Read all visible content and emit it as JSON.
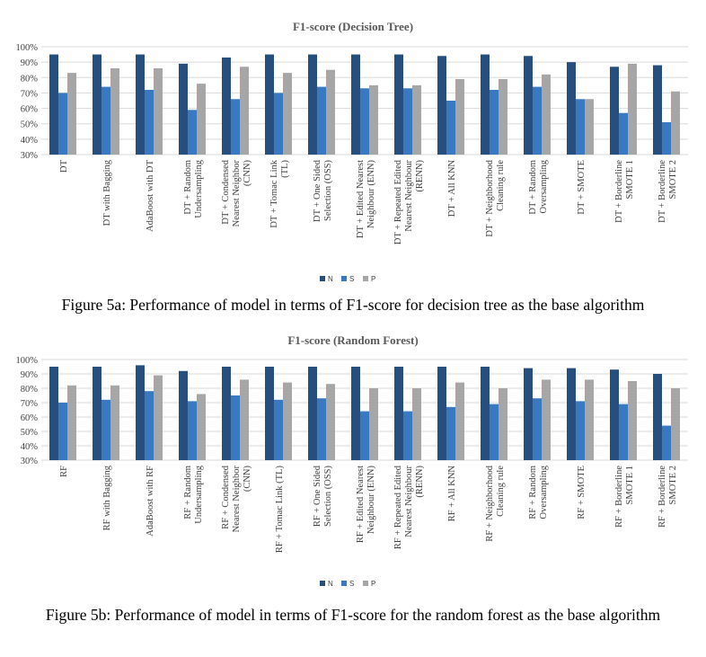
{
  "figures": [
    {
      "caption": "Figure 5a: Performance of model in terms of F1-score for decision tree as the base algorithm"
    },
    {
      "caption": "Figure 5b: Performance of model in terms of F1-score for the random forest as the base algorithm"
    }
  ],
  "colors": {
    "N": "#264f7d",
    "S": "#3a78c2",
    "P": "#a6a6a6",
    "grid": "#d9d9d9"
  },
  "chart_data": [
    {
      "type": "bar",
      "title": "F1-score (Decision Tree)",
      "xlabel": "",
      "ylabel": "",
      "ylim": [
        30,
        100
      ],
      "yticks": [
        "30%",
        "40%",
        "50%",
        "60%",
        "70%",
        "80%",
        "90%",
        "100%"
      ],
      "grid": true,
      "legend_position": "bottom",
      "categories": [
        [
          "DT"
        ],
        [
          "DT with Bagging"
        ],
        [
          "AdaBoost with DT"
        ],
        [
          "DT + Random",
          "Undersampling"
        ],
        [
          "DT + Condensed",
          "Nearest Neighbor",
          "(CNN)"
        ],
        [
          "DT + Tomac Link",
          "(TL)"
        ],
        [
          "DT + One Sided",
          "Selection (OSS)"
        ],
        [
          "DT + Edited Nearest",
          "Neighbour (ENN)"
        ],
        [
          "DT + Repeated Edited",
          "Nearest Neighbour",
          "(RENN)"
        ],
        [
          "DT + All KNN"
        ],
        [
          "DT + Neighborhood",
          "Cleaning rule"
        ],
        [
          "DT + Random",
          "Oversampling"
        ],
        [
          "DT + SMOTE"
        ],
        [
          "DT + Borderline",
          "SMOTE 1"
        ],
        [
          "DT + Borderline",
          "SMOTE 2"
        ]
      ],
      "series": [
        {
          "name": "N",
          "values": [
            95,
            95,
            95,
            89,
            93,
            95,
            95,
            95,
            95,
            94,
            95,
            94,
            90,
            87,
            88
          ]
        },
        {
          "name": "S",
          "values": [
            70,
            74,
            72,
            59,
            66,
            70,
            74,
            73,
            73,
            65,
            72,
            74,
            66,
            57,
            51
          ]
        },
        {
          "name": "P",
          "values": [
            83,
            86,
            86,
            76,
            87,
            83,
            85,
            75,
            75,
            79,
            79,
            82,
            66,
            89,
            71
          ]
        }
      ]
    },
    {
      "type": "bar",
      "title": "F1-score (Random Forest)",
      "xlabel": "",
      "ylabel": "",
      "ylim": [
        30,
        100
      ],
      "yticks": [
        "30%",
        "40%",
        "50%",
        "60%",
        "70%",
        "80%",
        "90%",
        "100%"
      ],
      "grid": true,
      "legend_position": "bottom",
      "categories": [
        [
          "RF"
        ],
        [
          "RF with Bagging"
        ],
        [
          "AdaBoost with RF"
        ],
        [
          "RF + Random",
          "Undersampling"
        ],
        [
          "RF + Condensed",
          "Nearest Neighbor",
          "(CNN)"
        ],
        [
          "RF + Tomac Link (TL)"
        ],
        [
          "RF + One Sided",
          "Selection (OSS)"
        ],
        [
          "RF + Edited Nearest",
          "Neighbour (ENN)"
        ],
        [
          "RF + Repeated Edited",
          "Nearest Neighbour",
          "(RENN)"
        ],
        [
          "RF + All KNN"
        ],
        [
          "RF + Neighborhood",
          "Cleaning rule"
        ],
        [
          "RF + Random",
          "Oversampling"
        ],
        [
          "RF + SMOTE"
        ],
        [
          "RF + Borderline",
          "SMOTE 1"
        ],
        [
          "RF + Borderline",
          "SMOTE 2"
        ]
      ],
      "series": [
        {
          "name": "N",
          "values": [
            95,
            95,
            96,
            92,
            95,
            95,
            95,
            95,
            95,
            95,
            95,
            94,
            94,
            93,
            90
          ]
        },
        {
          "name": "S",
          "values": [
            70,
            72,
            78,
            71,
            75,
            72,
            73,
            64,
            64,
            67,
            69,
            73,
            71,
            69,
            54
          ]
        },
        {
          "name": "P",
          "values": [
            82,
            82,
            89,
            76,
            86,
            84,
            83,
            80,
            80,
            84,
            80,
            86,
            86,
            85,
            80
          ]
        }
      ]
    }
  ]
}
